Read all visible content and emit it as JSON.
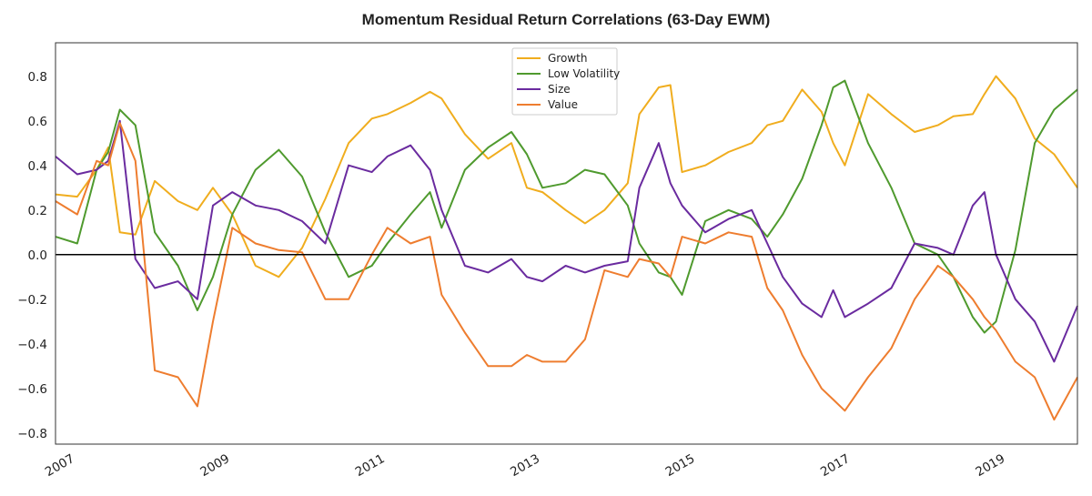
{
  "chart_data": {
    "type": "line",
    "title": "Momentum Residual Return Correlations (63-Day EWM)",
    "xlabel": "",
    "ylabel": "",
    "xlim": [
      2006.92,
      2020.1
    ],
    "ylim": [
      -0.85,
      0.95
    ],
    "grid": false,
    "legend_position": "top-center",
    "x_tick_labels": [
      "2007",
      "2009",
      "2011",
      "2013",
      "2015",
      "2017",
      "2019"
    ],
    "x_ticks": [
      2007,
      2009,
      2011,
      2013,
      2015,
      2017,
      2019
    ],
    "y_ticks": [
      -0.8,
      -0.6,
      -0.4,
      -0.2,
      0.0,
      0.2,
      0.4,
      0.6,
      0.8
    ],
    "y_tick_labels": [
      "−0.8",
      "−0.6",
      "−0.4",
      "−0.2",
      "0.0",
      "0.2",
      "0.4",
      "0.6",
      "0.8"
    ],
    "reference_line": {
      "y": 0.0,
      "color": "#000000"
    },
    "x": [
      2006.92,
      2007.2,
      2007.45,
      2007.6,
      2007.75,
      2007.95,
      2008.2,
      2008.5,
      2008.75,
      2008.95,
      2009.2,
      2009.5,
      2009.8,
      2010.1,
      2010.4,
      2010.7,
      2011.0,
      2011.2,
      2011.5,
      2011.75,
      2011.9,
      2012.2,
      2012.5,
      2012.8,
      2013.0,
      2013.2,
      2013.5,
      2013.75,
      2014.0,
      2014.3,
      2014.45,
      2014.7,
      2014.85,
      2015.0,
      2015.3,
      2015.6,
      2015.9,
      2016.1,
      2016.3,
      2016.55,
      2016.8,
      2016.95,
      2017.1,
      2017.4,
      2017.7,
      2018.0,
      2018.3,
      2018.5,
      2018.75,
      2018.9,
      2019.05,
      2019.3,
      2019.55,
      2019.8,
      2020.1
    ],
    "series": [
      {
        "name": "Growth",
        "color": "#f0ad1e",
        "values": [
          0.27,
          0.26,
          0.38,
          0.48,
          0.1,
          0.09,
          0.33,
          0.24,
          0.2,
          0.3,
          0.18,
          -0.05,
          -0.1,
          0.03,
          0.25,
          0.5,
          0.61,
          0.63,
          0.68,
          0.73,
          0.7,
          0.54,
          0.43,
          0.5,
          0.3,
          0.28,
          0.2,
          0.14,
          0.2,
          0.32,
          0.63,
          0.75,
          0.76,
          0.37,
          0.4,
          0.46,
          0.5,
          0.58,
          0.6,
          0.74,
          0.64,
          0.5,
          0.4,
          0.72,
          0.63,
          0.55,
          0.58,
          0.62,
          0.63,
          0.72,
          0.8,
          0.7,
          0.52,
          0.45,
          0.3
        ]
      },
      {
        "name": "Low Volatility",
        "color": "#4f9a2e",
        "values": [
          0.08,
          0.05,
          0.38,
          0.46,
          0.65,
          0.58,
          0.1,
          -0.05,
          -0.25,
          -0.1,
          0.18,
          0.38,
          0.47,
          0.35,
          0.1,
          -0.1,
          -0.05,
          0.05,
          0.18,
          0.28,
          0.12,
          0.38,
          0.48,
          0.55,
          0.45,
          0.3,
          0.32,
          0.38,
          0.36,
          0.22,
          0.05,
          -0.08,
          -0.1,
          -0.18,
          0.15,
          0.2,
          0.16,
          0.08,
          0.18,
          0.34,
          0.58,
          0.75,
          0.78,
          0.5,
          0.3,
          0.05,
          0.0,
          -0.1,
          -0.28,
          -0.35,
          -0.3,
          0.02,
          0.5,
          0.65,
          0.74
        ]
      },
      {
        "name": "Size",
        "color": "#6a2b9f",
        "values": [
          0.44,
          0.36,
          0.38,
          0.42,
          0.6,
          -0.02,
          -0.15,
          -0.12,
          -0.2,
          0.22,
          0.28,
          0.22,
          0.2,
          0.15,
          0.05,
          0.4,
          0.37,
          0.44,
          0.49,
          0.38,
          0.2,
          -0.05,
          -0.08,
          -0.02,
          -0.1,
          -0.12,
          -0.05,
          -0.08,
          -0.05,
          -0.03,
          0.3,
          0.5,
          0.32,
          0.22,
          0.1,
          0.16,
          0.2,
          0.05,
          -0.1,
          -0.22,
          -0.28,
          -0.16,
          -0.28,
          -0.22,
          -0.15,
          0.05,
          0.03,
          0.0,
          0.22,
          0.28,
          0.0,
          -0.2,
          -0.3,
          -0.48,
          -0.23
        ]
      },
      {
        "name": "Value",
        "color": "#ee7d2f",
        "values": [
          0.24,
          0.18,
          0.42,
          0.4,
          0.59,
          0.42,
          -0.52,
          -0.55,
          -0.68,
          -0.3,
          0.12,
          0.05,
          0.02,
          0.01,
          -0.2,
          -0.2,
          0.0,
          0.12,
          0.05,
          0.08,
          -0.18,
          -0.35,
          -0.5,
          -0.5,
          -0.45,
          -0.48,
          -0.48,
          -0.38,
          -0.07,
          -0.1,
          -0.02,
          -0.04,
          -0.1,
          0.08,
          0.05,
          0.1,
          0.08,
          -0.15,
          -0.25,
          -0.45,
          -0.6,
          -0.65,
          -0.7,
          -0.55,
          -0.42,
          -0.2,
          -0.05,
          -0.1,
          -0.2,
          -0.28,
          -0.34,
          -0.48,
          -0.55,
          -0.74,
          -0.55
        ]
      }
    ]
  }
}
